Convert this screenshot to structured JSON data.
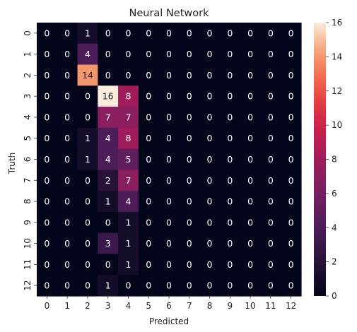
{
  "chart_data": {
    "type": "heatmap",
    "title": "Neural Network",
    "xlabel": "Predicted",
    "ylabel": "Truth",
    "x_categories": [
      "0",
      "1",
      "2",
      "3",
      "4",
      "5",
      "6",
      "7",
      "8",
      "9",
      "10",
      "11",
      "12"
    ],
    "y_categories": [
      "0",
      "1",
      "2",
      "3",
      "4",
      "5",
      "6",
      "7",
      "8",
      "9",
      "10",
      "11",
      "12"
    ],
    "values": [
      [
        0,
        0,
        1,
        0,
        0,
        0,
        0,
        0,
        0,
        0,
        0,
        0,
        0
      ],
      [
        0,
        0,
        4,
        0,
        0,
        0,
        0,
        0,
        0,
        0,
        0,
        0,
        0
      ],
      [
        0,
        0,
        14,
        0,
        0,
        0,
        0,
        0,
        0,
        0,
        0,
        0,
        0
      ],
      [
        0,
        0,
        0,
        16,
        8,
        0,
        0,
        0,
        0,
        0,
        0,
        0,
        0
      ],
      [
        0,
        0,
        0,
        7,
        7,
        0,
        0,
        0,
        0,
        0,
        0,
        0,
        0
      ],
      [
        0,
        0,
        1,
        4,
        8,
        0,
        0,
        0,
        0,
        0,
        0,
        0,
        0
      ],
      [
        0,
        0,
        1,
        4,
        5,
        0,
        0,
        0,
        0,
        0,
        0,
        0,
        0
      ],
      [
        0,
        0,
        0,
        2,
        7,
        0,
        0,
        0,
        0,
        0,
        0,
        0,
        0
      ],
      [
        0,
        0,
        0,
        1,
        4,
        0,
        0,
        0,
        0,
        0,
        0,
        0,
        0
      ],
      [
        0,
        0,
        0,
        0,
        1,
        0,
        0,
        0,
        0,
        0,
        0,
        0,
        0
      ],
      [
        0,
        0,
        0,
        3,
        1,
        0,
        0,
        0,
        0,
        0,
        0,
        0,
        0
      ],
      [
        0,
        0,
        0,
        0,
        1,
        0,
        0,
        0,
        0,
        0,
        0,
        0,
        0
      ],
      [
        0,
        0,
        0,
        1,
        0,
        0,
        0,
        0,
        0,
        0,
        0,
        0,
        0
      ]
    ],
    "colorbar": {
      "min": 0,
      "max": 16,
      "ticks": [
        0,
        2,
        4,
        6,
        8,
        10,
        12,
        14,
        16
      ],
      "colormap": "rocket"
    },
    "grid": false,
    "legend": "colorbar-right"
  }
}
